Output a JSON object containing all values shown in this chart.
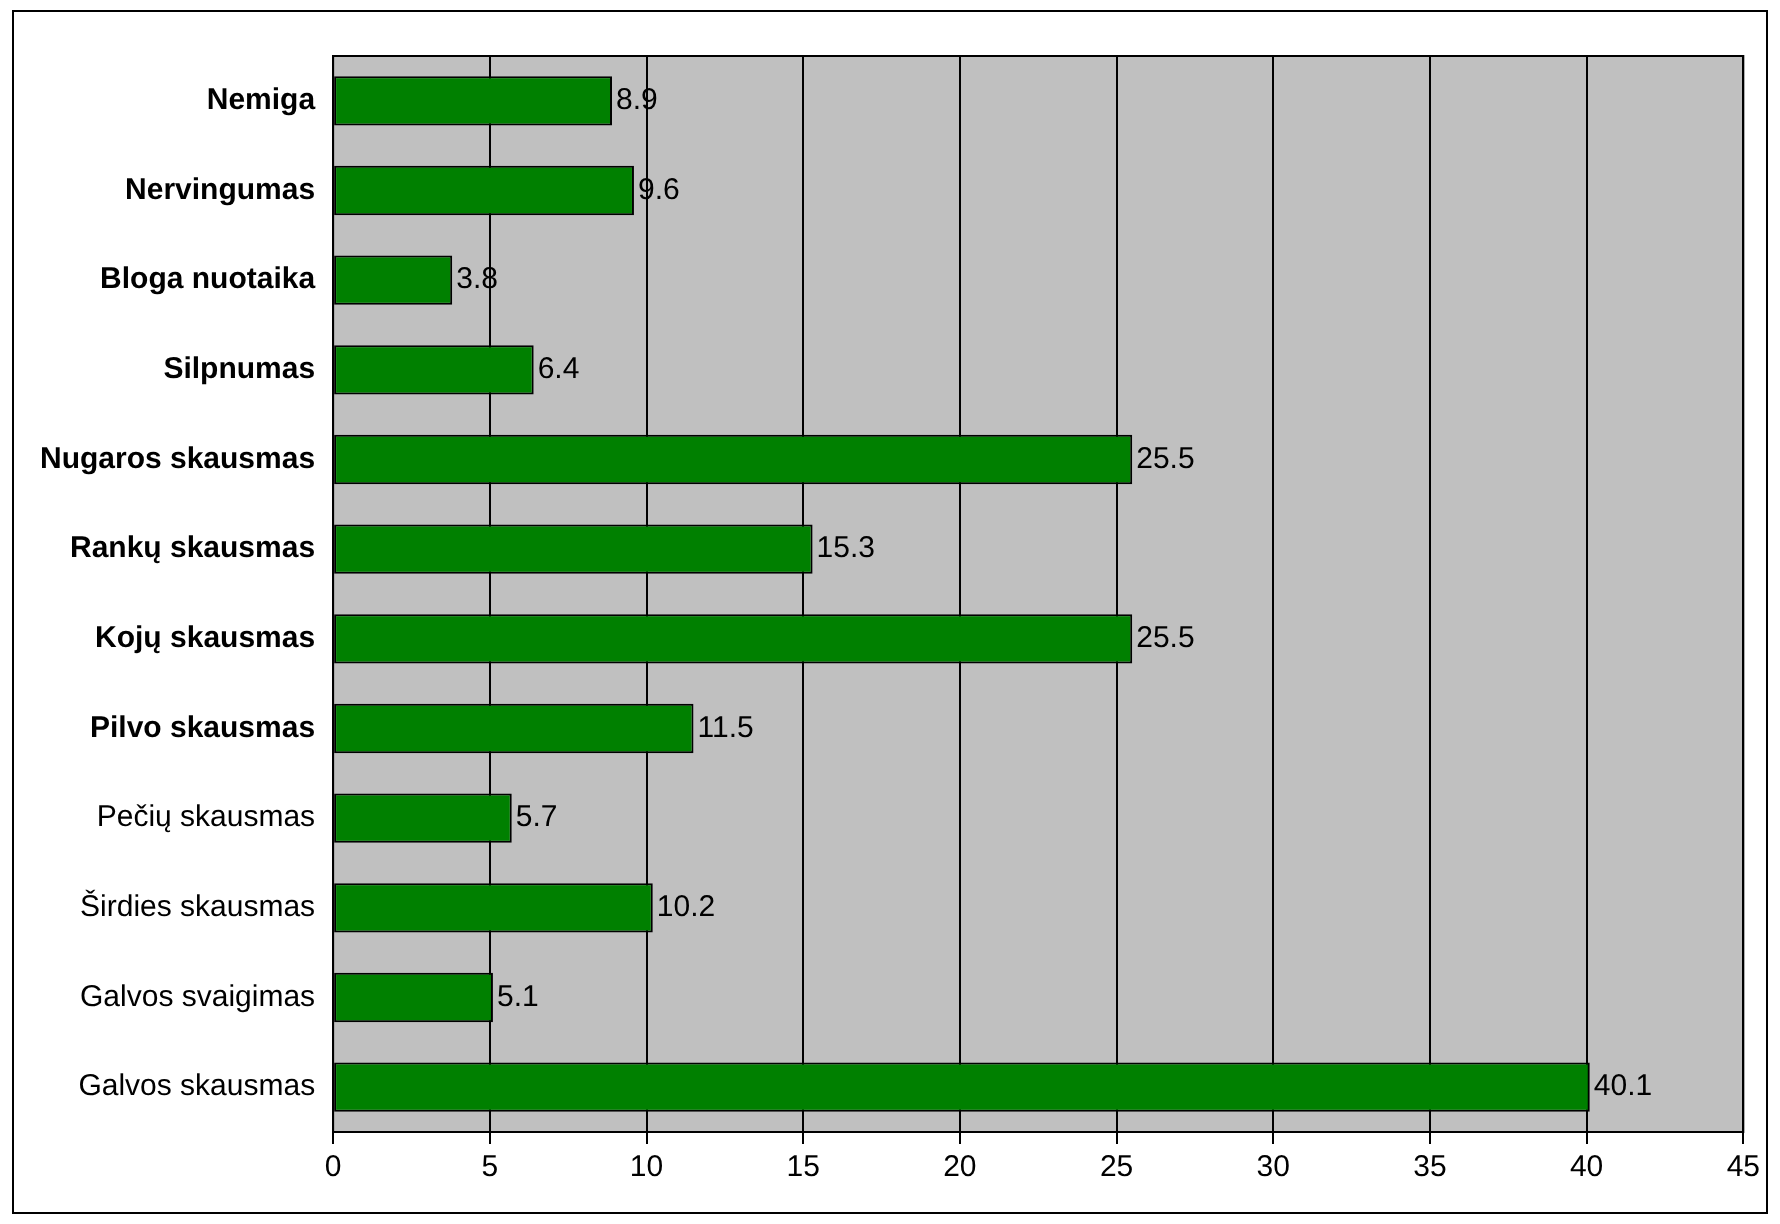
{
  "chart_data": {
    "type": "bar",
    "orientation": "horizontal",
    "categories": [
      "Nemiga",
      "Nervingumas",
      "Bloga nuotaika",
      "Silpnumas",
      "Nugaros skausmas",
      "Rankų skausmas",
      "Kojų skausmas",
      "Pilvo skausmas",
      "Pečių skausmas",
      "Širdies skausmas",
      "Galvos svaigimas",
      "Galvos skausmas"
    ],
    "values": [
      8.9,
      9.6,
      3.8,
      6.4,
      25.5,
      15.3,
      25.5,
      11.5,
      5.7,
      10.2,
      5.1,
      40.1
    ],
    "color": "#008000",
    "xlim": [
      0,
      45
    ],
    "xticks": [
      0,
      5,
      10,
      15,
      20,
      25,
      30,
      35,
      40,
      45
    ],
    "grid": "x",
    "legend": false,
    "data_labels": true
  }
}
